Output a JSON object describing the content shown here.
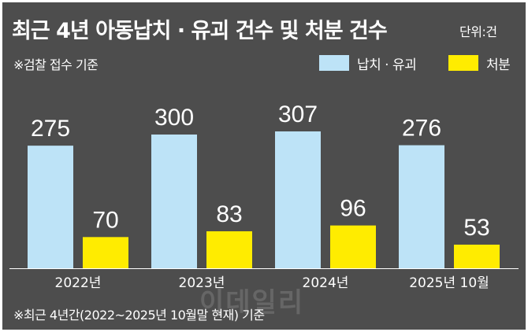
{
  "header": {
    "title": "최근 4년 아동납치 · 유괴 건수 및 처분 건수",
    "unit": "단위:건",
    "subtitle": "※검찰 접수 기준"
  },
  "footnote": "※최근 4년간(2022~2025년 10월말 현재) 기준",
  "watermark": "이데일리",
  "colors": {
    "background": "#4d4d4d",
    "kidnapping": "#bde3f7",
    "disposition": "#ffec00"
  },
  "chart_data": {
    "type": "bar",
    "title": "최근 4년 아동납치 · 유괴 건수 및 처분 건수",
    "categories": [
      "2022년",
      "2023년",
      "2024년",
      "2025년 10월"
    ],
    "series": [
      {
        "name": "납치 · 유괴",
        "values": [
          275,
          300,
          307,
          276
        ]
      },
      {
        "name": "처분",
        "values": [
          70,
          83,
          96,
          53
        ]
      }
    ],
    "ylim": [
      0,
      330
    ],
    "xlabel": "",
    "ylabel": "",
    "grid": false,
    "legend": "top-right"
  }
}
